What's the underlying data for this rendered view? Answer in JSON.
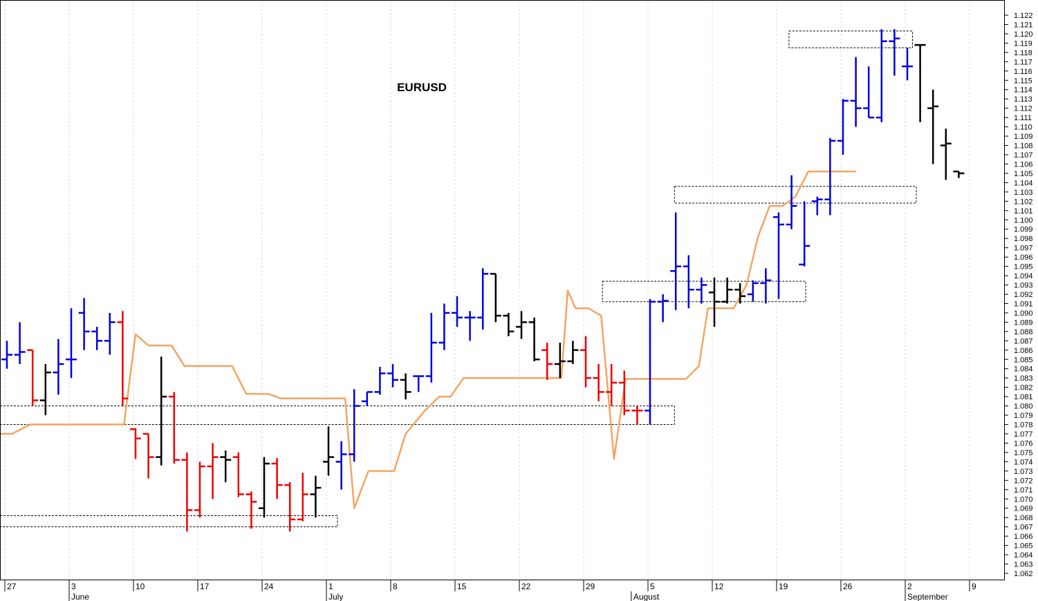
{
  "chart_data": {
    "type": "ohlc",
    "title": "EURUSD",
    "colors": {
      "up": "#0000dd",
      "down": "#ee0000",
      "neutral": "#000000",
      "stop_line": "#f4a460",
      "grid": "#d8d8d8",
      "box": "#000000"
    },
    "y_axis": {
      "min": 1.062,
      "max": 1.122,
      "step": 0.001,
      "position": "right"
    },
    "x_axis": {
      "day_labels": [
        {
          "label": "27",
          "idx": 0
        },
        {
          "label": "3",
          "idx": 5
        },
        {
          "label": "10",
          "idx": 10
        },
        {
          "label": "17",
          "idx": 15
        },
        {
          "label": "24",
          "idx": 20
        },
        {
          "label": "1",
          "idx": 25
        },
        {
          "label": "8",
          "idx": 30
        },
        {
          "label": "15",
          "idx": 35
        },
        {
          "label": "22",
          "idx": 40
        },
        {
          "label": "29",
          "idx": 45
        },
        {
          "label": "5",
          "idx": 50
        },
        {
          "label": "12",
          "idx": 55
        },
        {
          "label": "19",
          "idx": 60
        },
        {
          "label": "26",
          "idx": 65
        },
        {
          "label": "2",
          "idx": 70
        },
        {
          "label": "9",
          "idx": 75
        }
      ],
      "month_labels": [
        {
          "label": "June",
          "idx": 5
        },
        {
          "label": "July",
          "idx": 25
        },
        {
          "label": "August",
          "idx": 48.7
        },
        {
          "label": "September",
          "idx": 70
        }
      ]
    },
    "bars": [
      {
        "o": 1.085,
        "h": 1.087,
        "l": 1.084,
        "c": 1.0855,
        "col": "up"
      },
      {
        "o": 1.0855,
        "h": 1.089,
        "l": 1.0845,
        "c": 1.0858,
        "col": "up"
      },
      {
        "o": 1.086,
        "h": 1.086,
        "l": 1.08,
        "c": 1.0806,
        "col": "down"
      },
      {
        "o": 1.0806,
        "h": 1.0845,
        "l": 1.079,
        "c": 1.0836,
        "col": "neutral"
      },
      {
        "o": 1.0836,
        "h": 1.0872,
        "l": 1.0812,
        "c": 1.0845,
        "col": "up"
      },
      {
        "o": 1.085,
        "h": 1.0905,
        "l": 1.083,
        "c": 1.085,
        "col": "up"
      },
      {
        "o": 1.09,
        "h": 1.0916,
        "l": 1.086,
        "c": 1.088,
        "col": "up"
      },
      {
        "o": 1.088,
        "h": 1.0885,
        "l": 1.086,
        "c": 1.087,
        "col": "up"
      },
      {
        "o": 1.087,
        "h": 1.09,
        "l": 1.0855,
        "c": 1.089,
        "col": "up"
      },
      {
        "o": 1.089,
        "h": 1.0902,
        "l": 1.08,
        "c": 1.0808,
        "col": "down"
      },
      {
        "o": 1.0775,
        "h": 1.0776,
        "l": 1.0743,
        "c": 1.0765,
        "col": "down"
      },
      {
        "o": 1.077,
        "h": 1.077,
        "l": 1.0722,
        "c": 1.0745,
        "col": "down"
      },
      {
        "o": 1.0745,
        "h": 1.0853,
        "l": 1.0736,
        "c": 1.081,
        "col": "neutral"
      },
      {
        "o": 1.081,
        "h": 1.0815,
        "l": 1.0738,
        "c": 1.0742,
        "col": "down"
      },
      {
        "o": 1.0742,
        "h": 1.075,
        "l": 1.0665,
        "c": 1.0688,
        "col": "down"
      },
      {
        "o": 1.0688,
        "h": 1.074,
        "l": 1.068,
        "c": 1.0735,
        "col": "down"
      },
      {
        "o": 1.0735,
        "h": 1.076,
        "l": 1.07,
        "c": 1.0745,
        "col": "down"
      },
      {
        "o": 1.0745,
        "h": 1.0752,
        "l": 1.0718,
        "c": 1.0742,
        "col": "neutral"
      },
      {
        "o": 1.0745,
        "h": 1.075,
        "l": 1.0702,
        "c": 1.0705,
        "col": "down"
      },
      {
        "o": 1.0705,
        "h": 1.0708,
        "l": 1.0668,
        "c": 1.0697,
        "col": "down"
      },
      {
        "o": 1.069,
        "h": 1.0745,
        "l": 1.068,
        "c": 1.0738,
        "col": "neutral"
      },
      {
        "o": 1.0738,
        "h": 1.0744,
        "l": 1.07,
        "c": 1.0715,
        "col": "down"
      },
      {
        "o": 1.0715,
        "h": 1.0718,
        "l": 1.0665,
        "c": 1.0678,
        "col": "down"
      },
      {
        "o": 1.0678,
        "h": 1.0728,
        "l": 1.0676,
        "c": 1.0705,
        "col": "down"
      },
      {
        "o": 1.0705,
        "h": 1.0725,
        "l": 1.068,
        "c": 1.0712,
        "col": "neutral"
      },
      {
        "o": 1.074,
        "h": 1.0778,
        "l": 1.0725,
        "c": 1.0745,
        "col": "neutral"
      },
      {
        "o": 1.074,
        "h": 1.0762,
        "l": 1.071,
        "c": 1.0748,
        "col": "up"
      },
      {
        "o": 1.0748,
        "h": 1.0818,
        "l": 1.074,
        "c": 1.08,
        "col": "up"
      },
      {
        "o": 1.0805,
        "h": 1.0815,
        "l": 1.08,
        "c": 1.0815,
        "col": "up"
      },
      {
        "o": 1.0815,
        "h": 1.0842,
        "l": 1.0812,
        "c": 1.0835,
        "col": "up"
      },
      {
        "o": 1.0835,
        "h": 1.0845,
        "l": 1.082,
        "c": 1.0828,
        "col": "up"
      },
      {
        "o": 1.0828,
        "h": 1.0835,
        "l": 1.0807,
        "c": 1.0815,
        "col": "neutral"
      },
      {
        "o": 1.0832,
        "h": 1.0832,
        "l": 1.0815,
        "c": 1.0832,
        "col": "up"
      },
      {
        "o": 1.0832,
        "h": 1.09,
        "l": 1.0825,
        "c": 1.0868,
        "col": "up"
      },
      {
        "o": 1.0868,
        "h": 1.091,
        "l": 1.086,
        "c": 1.09,
        "col": "up"
      },
      {
        "o": 1.09,
        "h": 1.0918,
        "l": 1.0885,
        "c": 1.0895,
        "col": "up"
      },
      {
        "o": 1.0895,
        "h": 1.0902,
        "l": 1.087,
        "c": 1.0895,
        "col": "up"
      },
      {
        "o": 1.0895,
        "h": 1.0948,
        "l": 1.0882,
        "c": 1.0942,
        "col": "up"
      },
      {
        "o": 1.0942,
        "h": 1.0942,
        "l": 1.089,
        "c": 1.0897,
        "col": "neutral"
      },
      {
        "o": 1.0897,
        "h": 1.09,
        "l": 1.0875,
        "c": 1.088,
        "col": "neutral"
      },
      {
        "o": 1.0885,
        "h": 1.0902,
        "l": 1.0872,
        "c": 1.089,
        "col": "neutral"
      },
      {
        "o": 1.089,
        "h": 1.0895,
        "l": 1.0848,
        "c": 1.085,
        "col": "neutral"
      },
      {
        "o": 1.086,
        "h": 1.0868,
        "l": 1.0828,
        "c": 1.0845,
        "col": "down"
      },
      {
        "o": 1.0845,
        "h": 1.0868,
        "l": 1.083,
        "c": 1.0848,
        "col": "neutral"
      },
      {
        "o": 1.0848,
        "h": 1.087,
        "l": 1.0845,
        "c": 1.086,
        "col": "neutral"
      },
      {
        "o": 1.086,
        "h": 1.0875,
        "l": 1.082,
        "c": 1.083,
        "col": "down"
      },
      {
        "o": 1.083,
        "h": 1.0845,
        "l": 1.0805,
        "c": 1.0815,
        "col": "down"
      },
      {
        "o": 1.0815,
        "h": 1.0845,
        "l": 1.08,
        "c": 1.0825,
        "col": "down"
      },
      {
        "o": 1.0825,
        "h": 1.0838,
        "l": 1.079,
        "c": 1.0795,
        "col": "down"
      },
      {
        "o": 1.0795,
        "h": 1.08,
        "l": 1.078,
        "c": 1.0795,
        "col": "down"
      },
      {
        "o": 1.0795,
        "h": 1.0915,
        "l": 1.078,
        "c": 1.0912,
        "col": "up"
      },
      {
        "o": 1.0912,
        "h": 1.092,
        "l": 1.089,
        "c": 1.0913,
        "col": "up"
      },
      {
        "o": 1.0945,
        "h": 1.1008,
        "l": 1.0903,
        "c": 1.095,
        "col": "up"
      },
      {
        "o": 1.095,
        "h": 1.0962,
        "l": 1.0905,
        "c": 1.0925,
        "col": "up"
      },
      {
        "o": 1.0925,
        "h": 1.0938,
        "l": 1.091,
        "c": 1.093,
        "col": "up"
      },
      {
        "o": 1.0922,
        "h": 1.0938,
        "l": 1.0885,
        "c": 1.0912,
        "col": "neutral"
      },
      {
        "o": 1.0912,
        "h": 1.0938,
        "l": 1.091,
        "c": 1.0925,
        "col": "neutral"
      },
      {
        "o": 1.0925,
        "h": 1.0932,
        "l": 1.091,
        "c": 1.0918,
        "col": "neutral"
      },
      {
        "o": 1.092,
        "h": 1.0935,
        "l": 1.0912,
        "c": 1.0932,
        "col": "up"
      },
      {
        "o": 1.0932,
        "h": 1.0948,
        "l": 1.091,
        "c": 1.0935,
        "col": "up"
      },
      {
        "o": 1.1003,
        "h": 1.1008,
        "l": 1.0915,
        "c": 1.0995,
        "col": "up"
      },
      {
        "o": 1.0995,
        "h": 1.1048,
        "l": 1.099,
        "c": 1.1015,
        "col": "up"
      },
      {
        "o": 1.0952,
        "h": 1.102,
        "l": 1.095,
        "c": 1.0972,
        "col": "up"
      },
      {
        "o": 1.102,
        "h": 1.1025,
        "l": 1.1005,
        "c": 1.1022,
        "col": "up"
      },
      {
        "o": 1.1022,
        "h": 1.1088,
        "l": 1.1005,
        "c": 1.1085,
        "col": "up"
      },
      {
        "o": 1.1085,
        "h": 1.113,
        "l": 1.107,
        "c": 1.1128,
        "col": "up"
      },
      {
        "o": 1.1128,
        "h": 1.1175,
        "l": 1.11,
        "c": 1.112,
        "col": "up"
      },
      {
        "o": 1.112,
        "h": 1.1165,
        "l": 1.111,
        "c": 1.111,
        "col": "up"
      },
      {
        "o": 1.111,
        "h": 1.1205,
        "l": 1.1105,
        "c": 1.1192,
        "col": "up"
      },
      {
        "o": 1.1192,
        "h": 1.1205,
        "l": 1.1155,
        "c": 1.1195,
        "col": "up"
      },
      {
        "o": 1.1165,
        "h": 1.1185,
        "l": 1.115,
        "c": 1.1165,
        "col": "up"
      },
      {
        "o": 1.1188,
        "h": 1.1188,
        "l": 1.1105,
        "c": 1.1188,
        "col": "neutral"
      },
      {
        "o": 1.112,
        "h": 1.114,
        "l": 1.106,
        "c": 1.1122,
        "col": "neutral"
      },
      {
        "o": 1.108,
        "h": 1.1098,
        "l": 1.1043,
        "c": 1.1082,
        "col": "neutral"
      },
      {
        "o": 1.1052,
        "h": 1.1052,
        "l": 1.1045,
        "c": 1.105,
        "col": "neutral"
      }
    ],
    "stop_line": [
      {
        "i": -1.5,
        "v": 1.077
      },
      {
        "i": 0.4,
        "v": 1.077
      },
      {
        "i": 1.8,
        "v": 1.078
      },
      {
        "i": 9.1,
        "v": 1.078
      },
      {
        "i": 10.0,
        "v": 1.0877
      },
      {
        "i": 11.0,
        "v": 1.0865
      },
      {
        "i": 12.8,
        "v": 1.0865
      },
      {
        "i": 13.8,
        "v": 1.0843
      },
      {
        "i": 17.5,
        "v": 1.0843
      },
      {
        "i": 18.6,
        "v": 1.0813
      },
      {
        "i": 20.3,
        "v": 1.0813
      },
      {
        "i": 21.3,
        "v": 1.0808
      },
      {
        "i": 26.3,
        "v": 1.0808
      },
      {
        "i": 27.0,
        "v": 1.069
      },
      {
        "i": 28.1,
        "v": 1.073
      },
      {
        "i": 30.1,
        "v": 1.073
      },
      {
        "i": 31.0,
        "v": 1.077
      },
      {
        "i": 32.5,
        "v": 1.0795
      },
      {
        "i": 33.6,
        "v": 1.081
      },
      {
        "i": 34.5,
        "v": 1.081
      },
      {
        "i": 35.5,
        "v": 1.083
      },
      {
        "i": 43.1,
        "v": 1.083
      },
      {
        "i": 43.6,
        "v": 1.0924
      },
      {
        "i": 44.2,
        "v": 1.0905
      },
      {
        "i": 45.2,
        "v": 1.0905
      },
      {
        "i": 46.2,
        "v": 1.0897
      },
      {
        "i": 47.2,
        "v": 1.0743
      },
      {
        "i": 48.1,
        "v": 1.0829
      },
      {
        "i": 52.8,
        "v": 1.0829
      },
      {
        "i": 53.8,
        "v": 1.0843
      },
      {
        "i": 54.5,
        "v": 1.0905
      },
      {
        "i": 56.5,
        "v": 1.0905
      },
      {
        "i": 57.5,
        "v": 1.093
      },
      {
        "i": 58.4,
        "v": 1.0982
      },
      {
        "i": 59.3,
        "v": 1.1015
      },
      {
        "i": 60.3,
        "v": 1.1015
      },
      {
        "i": 61.3,
        "v": 1.1025
      },
      {
        "i": 62.3,
        "v": 1.1052
      },
      {
        "i": 66.0,
        "v": 1.1052
      }
    ],
    "boxes": [
      {
        "i0": -1.5,
        "i1": 25.7,
        "y_top": 1.0682,
        "y_bot": 1.067
      },
      {
        "i0": -1.5,
        "i1": 51.9,
        "y_top": 1.08,
        "y_bot": 1.078
      },
      {
        "i0": 46.3,
        "i1": 62.1,
        "y_top": 1.0934,
        "y_bot": 1.0912
      },
      {
        "i0": 51.9,
        "i1": 70.7,
        "y_top": 1.1036,
        "y_bot": 1.1018
      },
      {
        "i0": 60.8,
        "i1": 70.4,
        "y_top": 1.1203,
        "y_bot": 1.1185
      }
    ]
  }
}
